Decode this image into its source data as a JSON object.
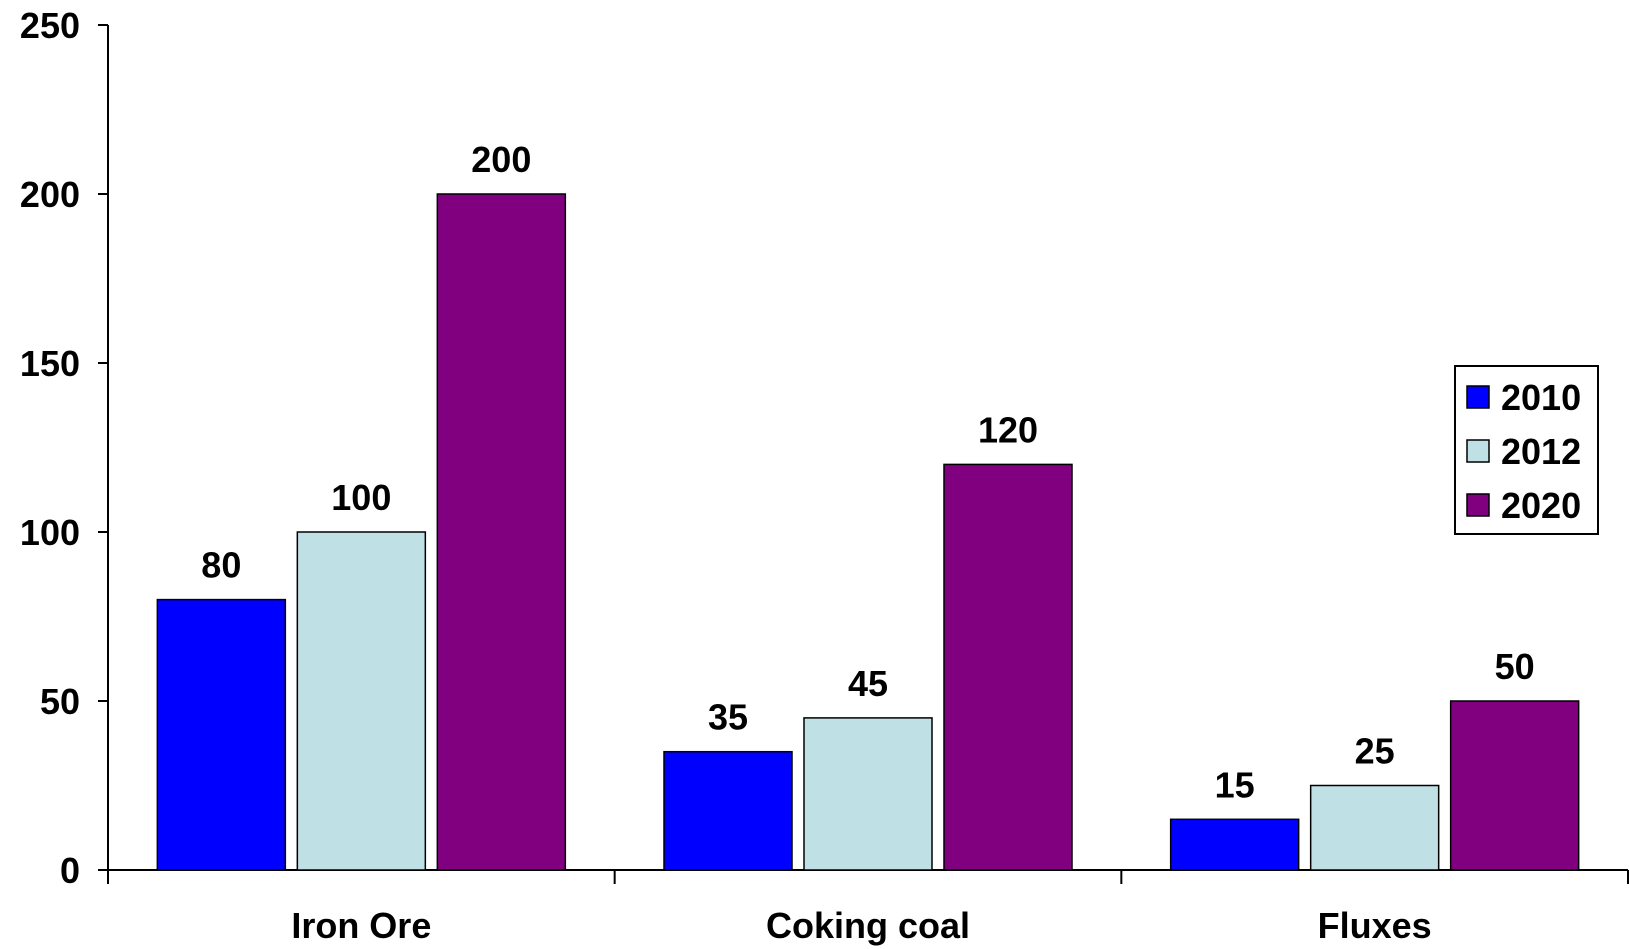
{
  "chart_data": {
    "type": "bar",
    "title": "",
    "xlabel": "",
    "ylabel": "",
    "categories": [
      "Iron Ore",
      "Coking coal",
      "Fluxes"
    ],
    "series": [
      {
        "name": "2010",
        "color": "#0000FF",
        "values": [
          80,
          35,
          15
        ]
      },
      {
        "name": "2012",
        "color": "#BFE1E6",
        "values": [
          100,
          45,
          25
        ]
      },
      {
        "name": "2020",
        "color": "#800080",
        "values": [
          200,
          120,
          50
        ]
      }
    ],
    "ylim": [
      0,
      250
    ],
    "yticks": [
      0,
      50,
      100,
      150,
      200,
      250
    ],
    "ytick_labels": [
      "0",
      "50",
      "100",
      "150",
      "200",
      "250"
    ],
    "data_labels": true,
    "grid": false,
    "legend_position": "right"
  }
}
